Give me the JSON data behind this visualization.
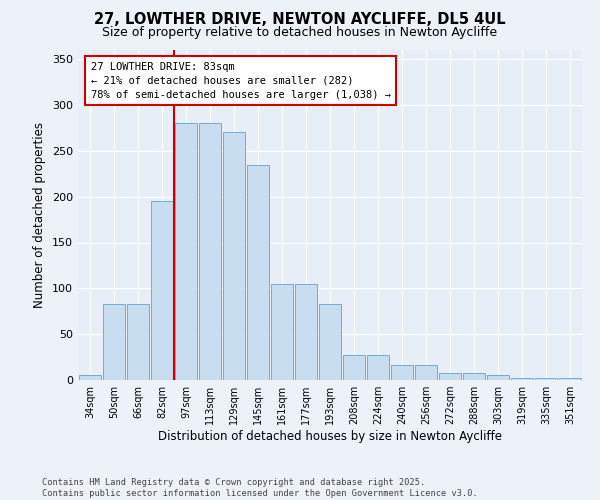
{
  "title_line1": "27, LOWTHER DRIVE, NEWTON AYCLIFFE, DL5 4UL",
  "title_line2": "Size of property relative to detached houses in Newton Aycliffe",
  "xlabel": "Distribution of detached houses by size in Newton Aycliffe",
  "ylabel": "Number of detached properties",
  "categories": [
    "34sqm",
    "50sqm",
    "66sqm",
    "82sqm",
    "97sqm",
    "113sqm",
    "129sqm",
    "145sqm",
    "161sqm",
    "177sqm",
    "193sqm",
    "208sqm",
    "224sqm",
    "240sqm",
    "256sqm",
    "272sqm",
    "288sqm",
    "303sqm",
    "319sqm",
    "335sqm",
    "351sqm"
  ],
  "bar_heights": [
    5,
    83,
    83,
    195,
    280,
    280,
    270,
    235,
    105,
    105,
    83,
    27,
    27,
    16,
    16,
    8,
    8,
    5,
    2,
    2,
    2
  ],
  "bar_color": "#c9ddf0",
  "bar_edge_color": "#6aaed6",
  "vline_color": "#cc0000",
  "vline_index": 3.5,
  "annotation_text": "27 LOWTHER DRIVE: 83sqm\n← 21% of detached houses are smaller (282)\n78% of semi-detached houses are larger (1,038) →",
  "ylim": [
    0,
    360
  ],
  "yticks": [
    0,
    50,
    100,
    150,
    200,
    250,
    300,
    350
  ],
  "plot_bg": "#e8eef7",
  "fig_bg": "#edf1f8",
  "footer": "Contains HM Land Registry data © Crown copyright and database right 2025.\nContains public sector information licensed under the Open Government Licence v3.0."
}
